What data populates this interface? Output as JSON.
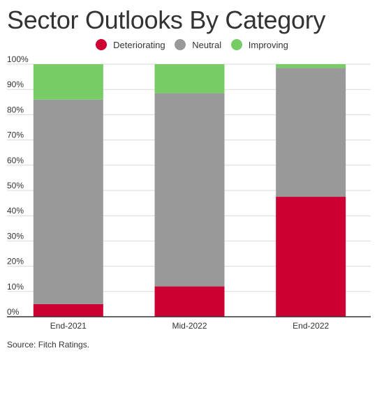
{
  "title": "Sector Outlooks By Category",
  "source": "Source: Fitch Ratings.",
  "legend": [
    {
      "label": "Deteriorating",
      "color": "#cc0033"
    },
    {
      "label": "Neutral",
      "color": "#999999"
    },
    {
      "label": "Improving",
      "color": "#77cc66"
    }
  ],
  "chart_data": {
    "type": "bar",
    "stacked": true,
    "categories": [
      "End-2021",
      "Mid-2022",
      "End-2022"
    ],
    "series": [
      {
        "name": "Deteriorating",
        "color": "#cc0033",
        "values": [
          5,
          12,
          47.5
        ]
      },
      {
        "name": "Neutral",
        "color": "#999999",
        "values": [
          81,
          76.5,
          51
        ]
      },
      {
        "name": "Improving",
        "color": "#77cc66",
        "values": [
          14,
          11.5,
          1.5
        ]
      }
    ],
    "ylim": [
      0,
      100
    ],
    "yticks": [
      "0%",
      "10%",
      "20%",
      "30%",
      "40%",
      "50%",
      "60%",
      "70%",
      "80%",
      "90%",
      "100%"
    ],
    "grid": true,
    "legend_position": "top-center"
  }
}
